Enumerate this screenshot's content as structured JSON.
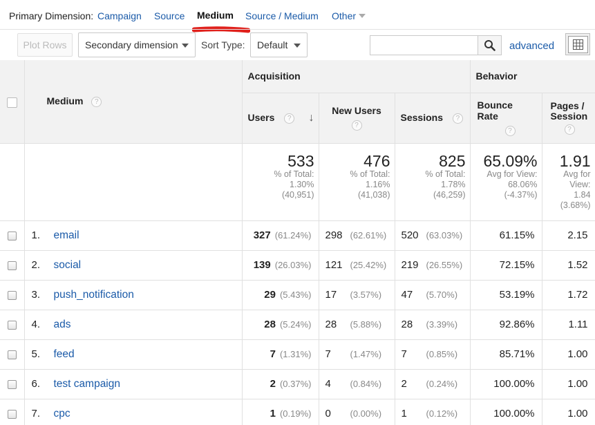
{
  "primary_dimension": {
    "label": "Primary Dimension:",
    "options": [
      "Campaign",
      "Source",
      "Medium",
      "Source / Medium",
      "Other"
    ],
    "active": "Medium"
  },
  "toolbar": {
    "plot_rows": "Plot Rows",
    "secondary_dimension": "Secondary dimension",
    "sort_type_label": "Sort Type:",
    "sort_type_value": "Default",
    "search_value": "",
    "advanced": "advanced"
  },
  "table": {
    "dimension_header": "Medium",
    "groups": {
      "acquisition": "Acquisition",
      "behavior": "Behavior"
    },
    "columns": {
      "users": "Users",
      "new_users": "New Users",
      "sessions": "Sessions",
      "bounce_rate": "Bounce Rate",
      "pages_session": "Pages / Session"
    },
    "help_glyph": "?",
    "sort_glyph": "↓",
    "totals": {
      "users": {
        "value": "533",
        "l1": "% of Total:",
        "l2": "1.30%",
        "l3": "(40,951)"
      },
      "new_users": {
        "value": "476",
        "l1": "% of Total:",
        "l2": "1.16%",
        "l3": "(41,038)"
      },
      "sessions": {
        "value": "825",
        "l1": "% of Total:",
        "l2": "1.78%",
        "l3": "(46,259)"
      },
      "bounce_rate": {
        "value": "65.09%",
        "l1": "Avg for View:",
        "l2": "68.06%",
        "l3": "(-4.37%)"
      },
      "pages_session": {
        "value": "1.91",
        "l1": "Avg for",
        "l2": "View:",
        "l3": "1.84",
        "l4": "(3.68%)"
      }
    },
    "rows": [
      {
        "index": "1.",
        "medium": "email",
        "users": "327",
        "users_pct": "(61.24%)",
        "new_users": "298",
        "new_users_pct": "(62.61%)",
        "sessions": "520",
        "sessions_pct": "(63.03%)",
        "bounce_rate": "61.15%",
        "pages_session": "2.15"
      },
      {
        "index": "2.",
        "medium": "social",
        "users": "139",
        "users_pct": "(26.03%)",
        "new_users": "121",
        "new_users_pct": "(25.42%)",
        "sessions": "219",
        "sessions_pct": "(26.55%)",
        "bounce_rate": "72.15%",
        "pages_session": "1.52"
      },
      {
        "index": "3.",
        "medium": "push_notification",
        "users": "29",
        "users_pct": "(5.43%)",
        "new_users": "17",
        "new_users_pct": "(3.57%)",
        "sessions": "47",
        "sessions_pct": "(5.70%)",
        "bounce_rate": "53.19%",
        "pages_session": "1.72"
      },
      {
        "index": "4.",
        "medium": "ads",
        "users": "28",
        "users_pct": "(5.24%)",
        "new_users": "28",
        "new_users_pct": "(5.88%)",
        "sessions": "28",
        "sessions_pct": "(3.39%)",
        "bounce_rate": "92.86%",
        "pages_session": "1.11"
      },
      {
        "index": "5.",
        "medium": "feed",
        "users": "7",
        "users_pct": "(1.31%)",
        "new_users": "7",
        "new_users_pct": "(1.47%)",
        "sessions": "7",
        "sessions_pct": "(0.85%)",
        "bounce_rate": "85.71%",
        "pages_session": "1.00"
      },
      {
        "index": "6.",
        "medium": "test campaign",
        "users": "2",
        "users_pct": "(0.37%)",
        "new_users": "4",
        "new_users_pct": "(0.84%)",
        "sessions": "2",
        "sessions_pct": "(0.24%)",
        "bounce_rate": "100.00%",
        "pages_session": "1.00"
      },
      {
        "index": "7.",
        "medium": "cpc",
        "users": "1",
        "users_pct": "(0.19%)",
        "new_users": "0",
        "new_users_pct": "(0.00%)",
        "sessions": "1",
        "sessions_pct": "(0.12%)",
        "bounce_rate": "100.00%",
        "pages_session": "1.00"
      }
    ]
  },
  "colors": {
    "link": "#1a5aa8",
    "highlight_underline": "#e0201b",
    "header_bg": "#f2f2f2"
  }
}
